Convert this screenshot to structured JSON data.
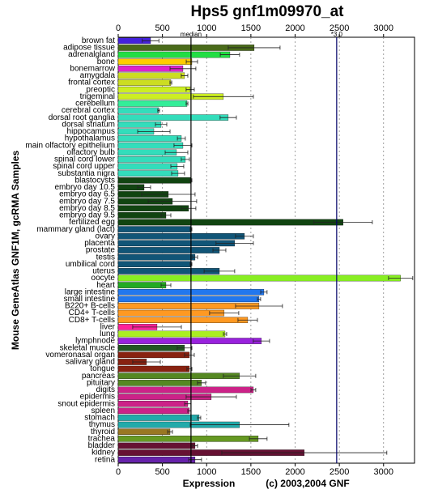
{
  "chart_data": {
    "type": "bar",
    "orientation": "horizontal",
    "title": "Hps5 gnf1m09970_at",
    "ylabel": "Mouse GeneAtlas GNF1M, gcRMA Samples",
    "xlabel": "Expression",
    "footer": "(c) 2003,2004 GNF",
    "categories": [
      "brown fat",
      "adipose tissue",
      "adrenalgland",
      "bone",
      "bonemarrow",
      "amygdala",
      "frontal cortex",
      "preoptic",
      "trigeminal",
      "cerebellum",
      "cerebral cortex",
      "dorsal root ganglia",
      "dorsal striatum",
      "hippocampus",
      "hypothalamus",
      "main olfactory epithelium",
      "olfactory bulb",
      "spinal cord lower",
      "spinal cord upper",
      "substantia nigra",
      "blastocysts",
      "embryo day 10.5",
      "embryo day 6.5",
      "embryo day 7.5",
      "embryo day 8.5",
      "embryo day 9.5",
      "fertilized egg",
      "mammary gland (lact)",
      "ovary",
      "placenta",
      "prostate",
      "testis",
      "umbilical cord",
      "uterus",
      "oocyte",
      "heart",
      "large intestine",
      "small intestine",
      "B220+ B-cells",
      "CD4+ T-cells",
      "CD8+ T-cells",
      "liver",
      "lung",
      "lymphnode",
      "skeletal muscle",
      "vomeronasal organ",
      "salivary gland",
      "tongue",
      "pancreas",
      "pituitary",
      "digits",
      "epidermis",
      "snout epidermis",
      "spleen",
      "stomach",
      "thymus",
      "thyroid",
      "trachea",
      "bladder",
      "kidney",
      "retina"
    ],
    "values": [
      366,
      1537,
      1263,
      833,
      732,
      750,
      595,
      814,
      1189,
      778,
      457,
      1244,
      485,
      403,
      714,
      732,
      659,
      759,
      668,
      677,
      823,
      293,
      567,
      613,
      796,
      540,
      2543,
      823,
      1427,
      1317,
      1144,
      869,
      823,
      1144,
      3193,
      540,
      1647,
      1592,
      1592,
      1198,
      1464,
      439,
      1208,
      1619,
      750,
      805,
      320,
      805,
      1372,
      942,
      1528,
      1052,
      787,
      805,
      915,
      1372,
      586,
      1583,
      869,
      2104,
      869
    ],
    "errors": [
      94,
      293,
      109,
      64,
      146,
      37,
      10,
      46,
      339,
      10,
      10,
      92,
      64,
      183,
      45,
      101,
      128,
      46,
      73,
      73,
      10,
      73,
      302,
      274,
      82,
      55,
      330,
      10,
      101,
      211,
      73,
      28,
      10,
      173,
      137,
      55,
      36,
      18,
      265,
      165,
      110,
      275,
      18,
      92,
      83,
      55,
      156,
      28,
      183,
      46,
      27,
      284,
      36,
      18,
      18,
      558,
      27,
      100,
      28,
      933,
      73
    ],
    "colors": [
      "#4422dd",
      "#4a6b1a",
      "#22dd44",
      "#ffcc00",
      "#dd22cc",
      "#ccdd22",
      "#ccdd22",
      "#ccee22",
      "#ccee22",
      "#33ee99",
      "#33ddbb",
      "#33ddbb",
      "#33ddbb",
      "#33ddbb",
      "#33ddbb",
      "#33ddbb",
      "#33ddbb",
      "#33ddbb",
      "#33ddbb",
      "#33ddbb",
      "#114411",
      "#114411",
      "#114411",
      "#114411",
      "#114411",
      "#114411",
      "#114411",
      "#115577",
      "#115577",
      "#115577",
      "#115577",
      "#115577",
      "#115577",
      "#115577",
      "#88ee22",
      "#22aa22",
      "#2277ee",
      "#2277ee",
      "#ff9922",
      "#ff9922",
      "#ff9922",
      "#ff2299",
      "#aaee22",
      "#9922dd",
      "#225522",
      "#882211",
      "#882211",
      "#882211",
      "#558822",
      "#558822",
      "#cc2288",
      "#cc2288",
      "#cc2288",
      "#cc2288",
      "#22aaaa",
      "#22aaaa",
      "#997722",
      "#669922",
      "#661133",
      "#661133",
      "#6622aa"
    ],
    "xlim": [
      0,
      3350
    ],
    "xticks": [
      0,
      500,
      1000,
      1500,
      2000,
      2500,
      3000
    ],
    "grid": true,
    "median_line": {
      "value": 823,
      "label": "median"
    },
    "threshold_line": {
      "value": 2470,
      "label": "*3.0"
    }
  }
}
